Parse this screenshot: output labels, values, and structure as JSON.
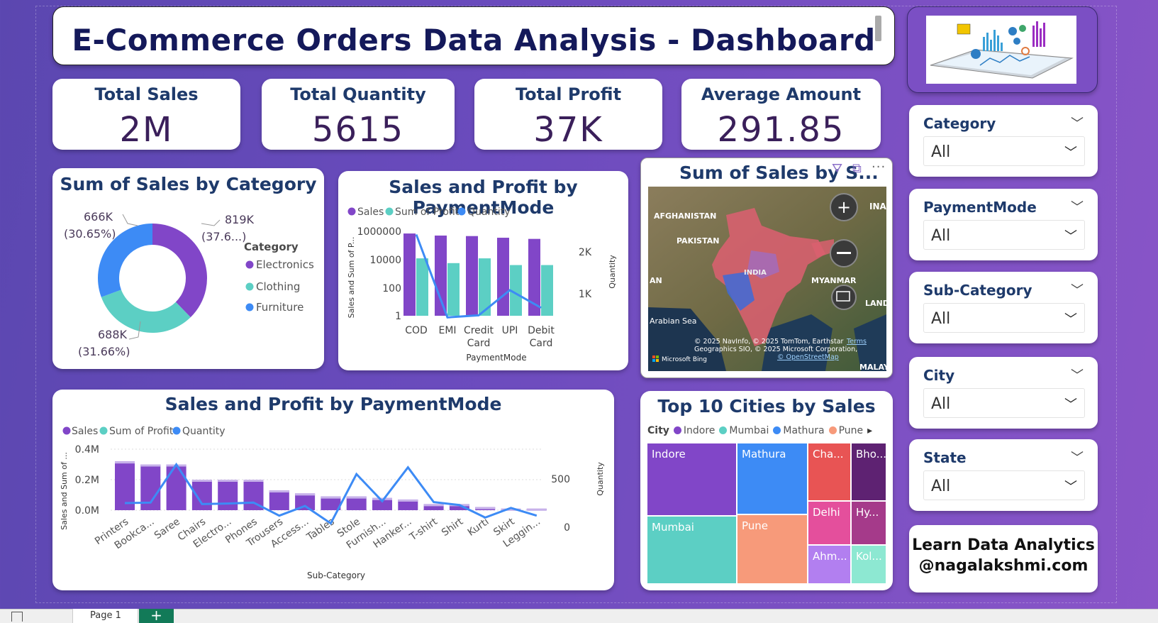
{
  "title": "E-Commerce Orders Data Analysis - Dashboard",
  "kpis": [
    {
      "label": "Total Sales",
      "value": "2M"
    },
    {
      "label": "Total Quantity",
      "value": "5615"
    },
    {
      "label": "Total Profit",
      "value": "37K"
    },
    {
      "label": "Average Amount",
      "value": "291.85"
    }
  ],
  "donut": {
    "title": "Sum of Sales by Category",
    "legend_title": "Category",
    "colors": [
      "#8146c8",
      "#5ccfc4",
      "#3d8bf5"
    ],
    "labels": [
      {
        "value": "819K",
        "pct": "(37.6...)"
      },
      {
        "value": "688K",
        "pct": "(31.66%)"
      },
      {
        "value": "666K",
        "pct": "(30.65%)"
      }
    ]
  },
  "pay_chart": {
    "title": "Sales and Profit by PaymentMode",
    "legend": [
      "Sales",
      "Sum of Profit",
      "Quantity"
    ],
    "y_left_label": "Sales and Sum of P...",
    "y_right_label": "Quantity",
    "x_label": "PaymentMode",
    "y_ticks": [
      "1000000",
      "10000",
      "100",
      "1"
    ],
    "y_right_ticks": [
      "2K",
      "1K"
    ],
    "cat_lines": [
      [
        "COD"
      ],
      [
        "EMI"
      ],
      [
        "Credit",
        "Card"
      ],
      [
        "UPI"
      ],
      [
        "Debit",
        "Card"
      ]
    ]
  },
  "map": {
    "title": "Sum of Sales by S...",
    "labels": [
      "AFGHANISTAN",
      "PAKISTAN",
      "INDIA",
      "MYANMAR",
      "Arabian Sea",
      "INA",
      "LAND",
      "AN",
      "MALAYSI"
    ],
    "attribution_1": "© 2025 NavInfo, © 2025 TomTom, Earthstar",
    "attribution_2": "Geographics SIO, © 2025 Microsoft Corporation,",
    "terms": "Terms",
    "osm": "© OpenStreetMap",
    "bing": "Microsoft Bing"
  },
  "sub_chart": {
    "title": "Sales and Profit by PaymentMode",
    "legend": [
      "Sales",
      "Sum of Profit",
      "Quantity"
    ],
    "y_left_label": "Sales and Sum of ...",
    "y_right_label": "Quantity",
    "x_label": "Sub-Category",
    "y_ticks": [
      "0.4M",
      "0.2M",
      "0.0M"
    ],
    "y_right_ticks": [
      "500",
      "0"
    ]
  },
  "treemap": {
    "title": "Top 10 Cities by Sales",
    "legend_title": "City",
    "legend": [
      {
        "name": "Indore",
        "color": "#8146c8"
      },
      {
        "name": "Mumbai",
        "color": "#5ccfc4"
      },
      {
        "name": "Mathura",
        "color": "#3d8bf5"
      },
      {
        "name": "Pune",
        "color": "#f79a7a"
      }
    ],
    "cells": [
      {
        "label": "Indore",
        "color": "#8146c8"
      },
      {
        "label": "Mumbai",
        "color": "#5ccfc4"
      },
      {
        "label": "Mathura",
        "color": "#3d8bf5"
      },
      {
        "label": "Pune",
        "color": "#f79a7a"
      },
      {
        "label": "Cha...",
        "color": "#e85454"
      },
      {
        "label": "Bho...",
        "color": "#5e2272"
      },
      {
        "label": "Delhi",
        "color": "#e44f9c"
      },
      {
        "label": "Hy...",
        "color": "#a53a8a"
      },
      {
        "label": "Ahm...",
        "color": "#b27ff0"
      },
      {
        "label": "Kol...",
        "color": "#8de8d2"
      }
    ]
  },
  "slicers": [
    {
      "label": "Category",
      "value": "All"
    },
    {
      "label": "PaymentMode",
      "value": "All"
    },
    {
      "label": "Sub-Category",
      "value": "All"
    },
    {
      "label": "City",
      "value": "All"
    },
    {
      "label": "State",
      "value": "All"
    }
  ],
  "learn": {
    "line1": "Learn Data Analytics",
    "line2": "@nagalakshmi.com"
  },
  "page_tab": "Page 1",
  "chart_data": [
    {
      "type": "pie",
      "title": "Sum of Sales by Category",
      "categories": [
        "Electronics",
        "Clothing",
        "Furniture"
      ],
      "values": [
        819000,
        688000,
        666000
      ],
      "percent": [
        37.6,
        31.66,
        30.65
      ],
      "legend_title": "Category",
      "legend": "right"
    },
    {
      "type": "bar",
      "title": "Sales and Profit by PaymentMode",
      "categories": [
        "COD",
        "EMI",
        "Credit Card",
        "UPI",
        "Debit Card"
      ],
      "xlabel": "PaymentMode",
      "ylabel": "Sales and Sum of P...",
      "y_scale": "log",
      "ylim": [
        1,
        1000000
      ],
      "y2label": "Quantity",
      "series": [
        {
          "name": "Sales",
          "type": "bar",
          "values": [
            700000,
            500000,
            460000,
            350000,
            290000
          ]
        },
        {
          "name": "Sum of Profit",
          "type": "bar",
          "values": [
            12000,
            5500,
            12000,
            4000,
            4000
          ]
        },
        {
          "name": "Quantity",
          "type": "line",
          "axis": "right",
          "values": [
            2500,
            520,
            570,
            1170,
            750
          ]
        }
      ]
    },
    {
      "type": "bar",
      "title": "Sales and Profit by PaymentMode",
      "categories": [
        "Printers",
        "Bookca...",
        "Saree",
        "Chairs",
        "Electro...",
        "Phones",
        "Trousers",
        "Access...",
        "Tables",
        "Stole",
        "Furnish...",
        "Hanker...",
        "T-shirt",
        "Shirt",
        "Kurti",
        "Skirt",
        "Leggin..."
      ],
      "xlabel": "Sub-Category",
      "ylabel": "Sales and Sum of ...",
      "ylim": [
        0,
        0.45
      ],
      "y_units": "M",
      "y2label": "Quantity",
      "series": [
        {
          "name": "Sales",
          "type": "bar",
          "values": [
            0.32,
            0.3,
            0.3,
            0.2,
            0.2,
            0.2,
            0.13,
            0.11,
            0.09,
            0.09,
            0.08,
            0.07,
            0.04,
            0.04,
            0.02,
            0.01,
            0.01
          ]
        },
        {
          "name": "Sum of Profit",
          "type": "bar",
          "values": [
            0.005,
            0.004,
            0.003,
            0.003,
            0.003,
            0.003,
            0.002,
            0.002,
            0.002,
            0.001,
            0.001,
            0.001,
            0.001,
            0.001,
            0.0005,
            0.0005,
            0.0005
          ]
        },
        {
          "name": "Quantity",
          "type": "line",
          "axis": "right",
          "values": [
            250,
            255,
            650,
            240,
            245,
            255,
            120,
            220,
            40,
            550,
            270,
            620,
            260,
            230,
            100,
            200,
            120
          ]
        }
      ]
    },
    {
      "type": "heatmap",
      "subtype": "treemap",
      "title": "Top 10 Cities by Sales",
      "categories": [
        "Indore",
        "Mumbai",
        "Mathura",
        "Pune",
        "Chandigarh",
        "Bhopal",
        "Delhi",
        "Hyderabad",
        "Ahmedabad",
        "Kolkata"
      ],
      "values": [
        1,
        0.95,
        0.88,
        0.85,
        0.25,
        0.24,
        0.22,
        0.21,
        0.15,
        0.14
      ]
    }
  ]
}
